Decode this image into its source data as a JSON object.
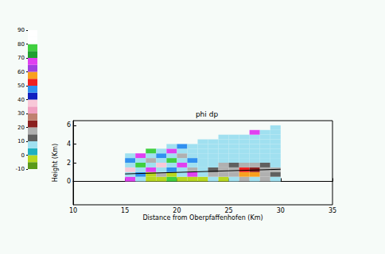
{
  "chart_data": {
    "type": "heatmap",
    "title": "phi dp",
    "x_label": "Distance from Oberpfaffenhofen (Km)",
    "y_label": "Height (Km)",
    "xlim": [
      10,
      35
    ],
    "xticks": [
      10,
      15,
      20,
      25,
      30,
      35
    ],
    "ylim": [
      -2.5,
      6.5
    ],
    "yticks": [
      0,
      2,
      4,
      6
    ],
    "x_edges": [
      15,
      16,
      17,
      18,
      19,
      20,
      21,
      22,
      23,
      24,
      25,
      26,
      27,
      28,
      29,
      30
    ],
    "y_edges": [
      0,
      0.5,
      1,
      1.5,
      2,
      2.5,
      3,
      3.5,
      4,
      4.5,
      5,
      5.5,
      6
    ],
    "values": [
      [
        65,
        5,
        -3,
        -3,
        75,
        -3,
        -3,
        -3,
        5,
        -3,
        5,
        15,
        5,
        15,
        5
      ],
      [
        5,
        45,
        -3,
        15,
        -3,
        5,
        65,
        5,
        15,
        15,
        17,
        55,
        58,
        15,
        12
      ],
      [
        35,
        5,
        65,
        5,
        45,
        5,
        15,
        5,
        12,
        17,
        15,
        52,
        22,
        17,
        15
      ],
      [
        5,
        75,
        5,
        35,
        5,
        65,
        5,
        8,
        5,
        15,
        12,
        15,
        17,
        12,
        8
      ],
      [
        45,
        5,
        15,
        5,
        75,
        5,
        45,
        5,
        8,
        5,
        8,
        5,
        8,
        5,
        5
      ],
      [
        5,
        65,
        5,
        45,
        5,
        15,
        5,
        5,
        8,
        5,
        5,
        8,
        5,
        8,
        5
      ],
      [
        null,
        null,
        75,
        5,
        65,
        5,
        8,
        5,
        5,
        8,
        5,
        5,
        8,
        5,
        8
      ],
      [
        null,
        null,
        null,
        null,
        5,
        45,
        5,
        8,
        5,
        5,
        8,
        5,
        5,
        8,
        5
      ],
      [
        null,
        null,
        null,
        null,
        null,
        null,
        null,
        5,
        8,
        5,
        5,
        8,
        5,
        5,
        8
      ],
      [
        null,
        null,
        null,
        null,
        null,
        null,
        null,
        null,
        null,
        8,
        5,
        5,
        8,
        5,
        5
      ],
      [
        null,
        null,
        null,
        null,
        null,
        null,
        null,
        null,
        null,
        null,
        null,
        null,
        65,
        5,
        8
      ],
      [
        null,
        null,
        null,
        null,
        null,
        null,
        null,
        null,
        null,
        null,
        null,
        null,
        null,
        null,
        5
      ]
    ],
    "colorbar": {
      "range": [
        -10,
        90
      ],
      "ticks": [
        -10,
        0,
        10,
        20,
        30,
        40,
        50,
        60,
        70,
        80,
        90
      ],
      "colors": [
        "#5a9a1a",
        "#b8d820",
        "#20b0c0",
        "#a0e0f0",
        "#606060",
        "#b0b0b0",
        "#8b2020",
        "#c08070",
        "#f0a0c0",
        "#f8c8d8",
        "#1020c0",
        "#3090f0",
        "#f02020",
        "#f8a020",
        "#a040e0",
        "#e040f0",
        "#20a030",
        "#40d040",
        "#ffffff",
        "#ffffff"
      ]
    },
    "line": {
      "x": [
        15,
        30
      ],
      "y": [
        0.8,
        1.3
      ],
      "color": "#000000"
    }
  }
}
